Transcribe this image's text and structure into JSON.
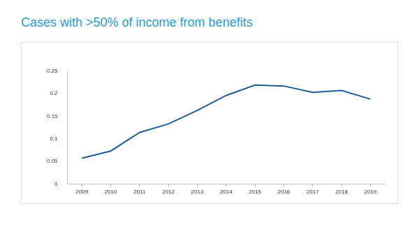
{
  "chart_data": {
    "type": "line",
    "title": "Cases with >50% of income from benefits",
    "categories": [
      "2009",
      "2010",
      "2011",
      "2012",
      "2013",
      "2014",
      "2015",
      "2016",
      "2017",
      "2018",
      "2019"
    ],
    "values": [
      0.057,
      0.073,
      0.114,
      0.133,
      0.163,
      0.196,
      0.219,
      0.217,
      0.203,
      0.207,
      0.188
    ],
    "color": "#1f5c99",
    "ylim": [
      0,
      0.25
    ],
    "yticks": [
      0,
      0.05,
      0.1,
      0.15,
      0.2,
      0.25
    ],
    "grid": false
  }
}
